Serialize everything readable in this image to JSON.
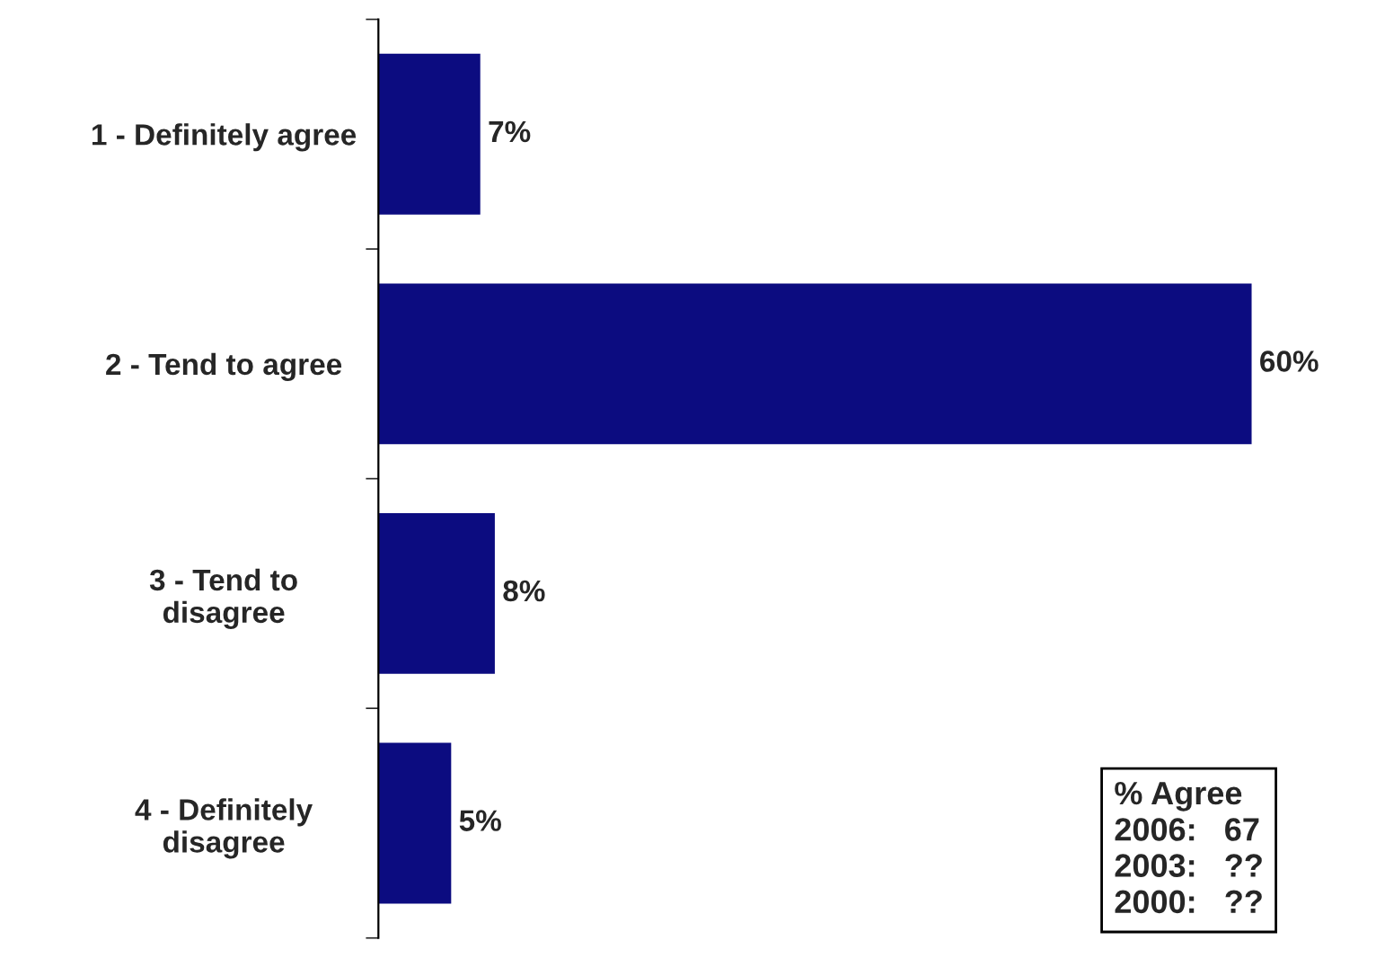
{
  "chart_data": {
    "type": "bar",
    "orientation": "horizontal",
    "categories": [
      "1 - Definitely agree",
      "2 - Tend to agree",
      "3 - Tend to\ndisagree",
      "4 - Definitely\ndisagree"
    ],
    "values": [
      7,
      60,
      8,
      5
    ],
    "value_labels": [
      "7%",
      "60%",
      "8%",
      "5%"
    ],
    "color": "#0c0c80",
    "grid": false,
    "legend": false,
    "annotations": [
      "% Agree\n2006:   67\n2003:   ??\n2000:   ??"
    ]
  }
}
